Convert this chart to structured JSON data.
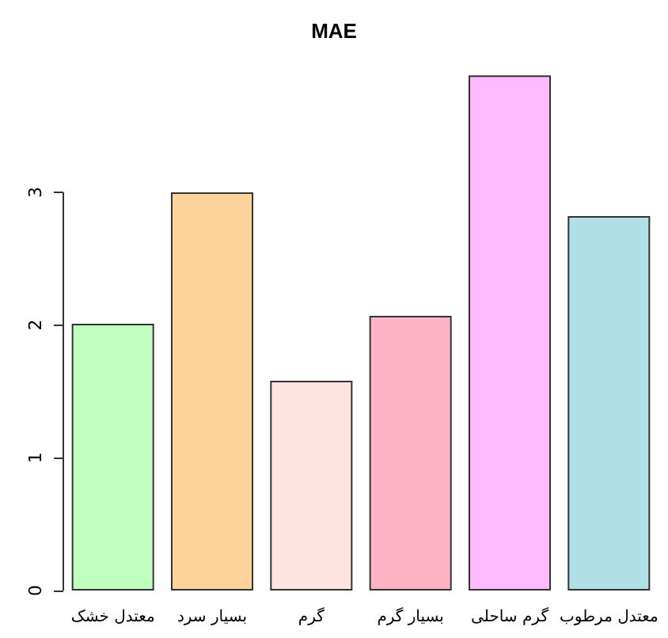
{
  "chart_data": {
    "type": "bar",
    "title": "MAE",
    "categories": [
      "معتدل خشک",
      "بسیار سرد",
      "گرم",
      "بسیار گرم",
      "گرم ساحلی",
      "معتدل مرطوب"
    ],
    "values": [
      2.01,
      3.0,
      1.58,
      2.07,
      3.88,
      2.82
    ],
    "colors": [
      "#c1ffc1",
      "#ffd39b",
      "#ffe4e1",
      "#ffb5c5",
      "#ffbbff",
      "#b0e0e6"
    ],
    "ylim": [
      0,
      3.9
    ],
    "yticks": [
      0,
      1,
      2,
      3
    ],
    "grid": false
  }
}
